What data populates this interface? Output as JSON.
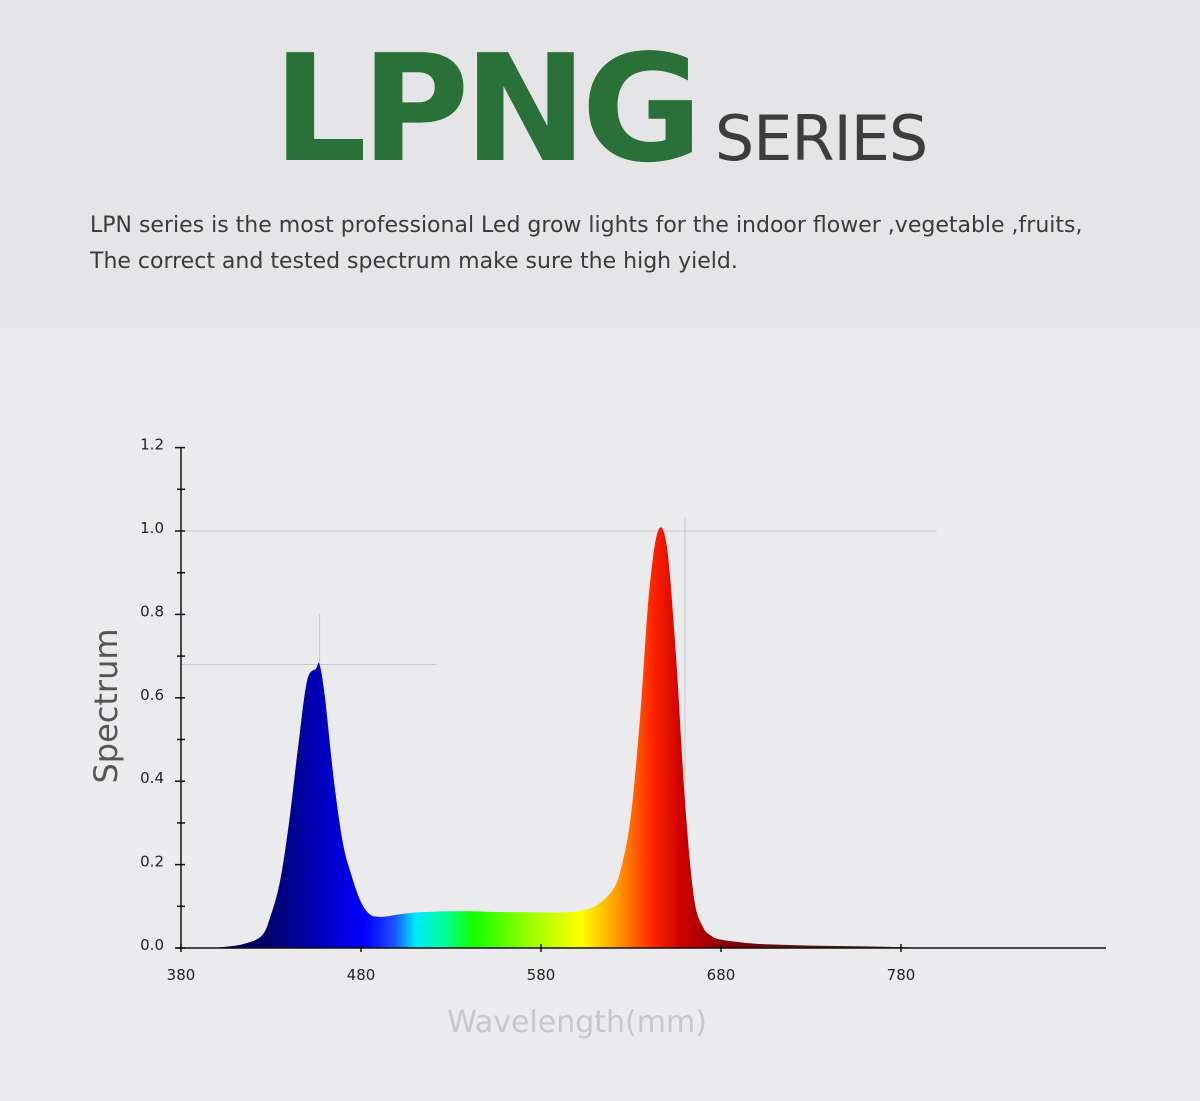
{
  "header": {
    "title_main": "LPNG",
    "title_sub": "SERIES",
    "description": [
      "LPN series is the most professional Led grow lights for the indoor flower ,vegetable ,fruits,",
      "The correct and tested spectrum make sure the high yield."
    ]
  },
  "chart_data": {
    "type": "area",
    "title": "",
    "xlabel": "Wavelength(mm)",
    "ylabel": "Spectrum",
    "xlim": [
      380,
      790
    ],
    "ylim": [
      0,
      1.2
    ],
    "x_ticks": [
      380,
      480,
      580,
      680,
      780
    ],
    "x_tick_labels": [
      "380",
      "480",
      "580",
      "680",
      "780"
    ],
    "y_ticks": [
      0,
      0.2,
      0.4,
      0.6,
      0.8,
      1.0,
      1.2
    ],
    "y_tick_labels": [
      "0.0",
      "0.2",
      "0.4",
      "0.6",
      "0.8",
      "1.0",
      "1.2"
    ],
    "grid": false,
    "reference_lines": [
      {
        "orientation": "horizontal",
        "y": 1.0,
        "x_range": [
          380,
          800
        ]
      },
      {
        "orientation": "vertical",
        "x": 660,
        "y_range": [
          0,
          1.03
        ]
      },
      {
        "orientation": "horizontal",
        "y": 0.68,
        "x_range": [
          380,
          522
        ]
      },
      {
        "orientation": "vertical",
        "x": 457,
        "y_range": [
          0.68,
          0.8
        ]
      }
    ],
    "series": [
      {
        "x": [
          395,
          405,
          415,
          425,
          430,
          435,
          440,
          445,
          450,
          455,
          457,
          460,
          465,
          470,
          475,
          480,
          485,
          490,
          495,
          500,
          510,
          520,
          530,
          540,
          550,
          560,
          570,
          580,
          590,
          600,
          610,
          620,
          625,
          630,
          635,
          640,
          645,
          650,
          655,
          660,
          665,
          670,
          675,
          680,
          690,
          700,
          720,
          740,
          760,
          780,
          795
        ],
        "y": [
          0.0,
          0.003,
          0.01,
          0.03,
          0.08,
          0.16,
          0.3,
          0.48,
          0.64,
          0.67,
          0.68,
          0.6,
          0.4,
          0.25,
          0.17,
          0.11,
          0.08,
          0.075,
          0.076,
          0.08,
          0.085,
          0.087,
          0.088,
          0.088,
          0.087,
          0.086,
          0.086,
          0.085,
          0.085,
          0.088,
          0.1,
          0.14,
          0.2,
          0.32,
          0.55,
          0.85,
          1.0,
          0.96,
          0.7,
          0.35,
          0.12,
          0.05,
          0.028,
          0.02,
          0.014,
          0.01,
          0.007,
          0.005,
          0.004,
          0.002,
          0.0
        ]
      }
    ]
  }
}
